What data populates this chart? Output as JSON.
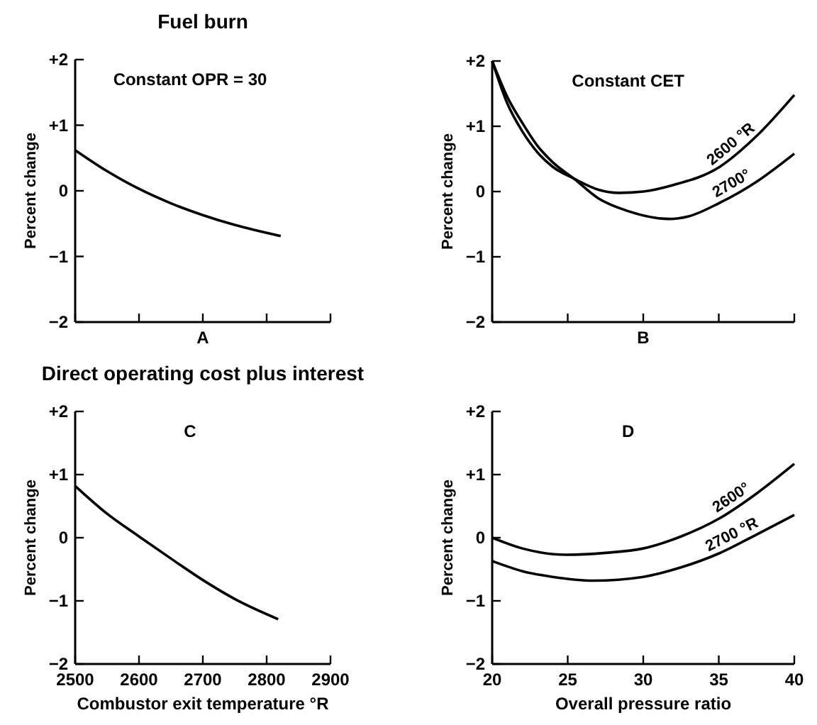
{
  "chart_data": [
    {
      "type": "line",
      "title": "Fuel burn",
      "xlabel": "A",
      "ylabel": "Percent change",
      "annotations": [
        "Constant OPR = 30"
      ],
      "tick_labels": "y",
      "grid": false,
      "xlim": [
        2500,
        2900
      ],
      "xticks": [
        2500,
        2600,
        2700,
        2800,
        2900
      ],
      "ylim": [
        -2,
        2
      ],
      "yticks": [
        {
          "value": 2,
          "label": "+2"
        },
        {
          "value": 1,
          "label": "+1"
        },
        {
          "value": 0,
          "label": "0"
        },
        {
          "value": -1,
          "label": "−1"
        },
        {
          "value": -2,
          "label": "−2"
        }
      ],
      "series": [
        {
          "color": "#000000",
          "x": [
            2500,
            2550,
            2600,
            2650,
            2700,
            2750,
            2822
          ],
          "values": [
            0.62,
            0.3,
            0.03,
            -0.19,
            -0.37,
            -0.52,
            -0.69
          ]
        }
      ]
    },
    {
      "type": "line",
      "xlabel": "B",
      "ylabel": "Percent change",
      "annotations": [
        "Constant CET"
      ],
      "tick_labels": "y",
      "grid": false,
      "xlim": [
        20,
        40
      ],
      "xticks": [
        20,
        25,
        30,
        35,
        40
      ],
      "ylim": [
        -2,
        2
      ],
      "yticks": [
        {
          "value": 2,
          "label": "+2"
        },
        {
          "value": 1,
          "label": "+1"
        },
        {
          "value": 0,
          "label": "0"
        },
        {
          "value": -1,
          "label": "−1"
        },
        {
          "value": -2,
          "label": "−2"
        }
      ],
      "series": [
        {
          "name": "2600 °R",
          "color": "#000000",
          "x": [
            20,
            21,
            22,
            23,
            24,
            25.4,
            27,
            28.4,
            30,
            32,
            35,
            37.5,
            40
          ],
          "values": [
            2.0,
            1.35,
            0.92,
            0.6,
            0.38,
            0.2,
            0.03,
            -0.02,
            0.0,
            0.1,
            0.37,
            0.85,
            1.48
          ]
        },
        {
          "name": "2700°",
          "color": "#000000",
          "x": [
            20,
            21,
            22,
            23,
            24,
            25.4,
            27,
            29,
            31.7,
            33,
            35,
            37.5,
            40
          ],
          "values": [
            2.0,
            1.45,
            1.05,
            0.7,
            0.45,
            0.2,
            -0.1,
            -0.3,
            -0.42,
            -0.38,
            -0.18,
            0.15,
            0.58
          ]
        }
      ]
    },
    {
      "type": "line",
      "title": "Direct operating cost plus interest",
      "xlabel": "Combustor exit temperature °R",
      "ylabel": "Percent change",
      "annotations": [
        "C"
      ],
      "grid": false,
      "xlim": [
        2500,
        2900
      ],
      "xticks": [
        2500,
        2600,
        2700,
        2800,
        2900
      ],
      "ylim": [
        -2,
        2
      ],
      "yticks": [
        {
          "value": 2,
          "label": "+2"
        },
        {
          "value": 1,
          "label": "+1"
        },
        {
          "value": 0,
          "label": "0"
        },
        {
          "value": -1,
          "label": "−1"
        },
        {
          "value": -2,
          "label": "−2"
        }
      ],
      "series": [
        {
          "color": "#000000",
          "x": [
            2500,
            2550,
            2600,
            2650,
            2700,
            2750,
            2818
          ],
          "values": [
            0.82,
            0.38,
            0.02,
            -0.33,
            -0.67,
            -0.97,
            -1.29
          ]
        }
      ]
    },
    {
      "type": "line",
      "xlabel": "Overall pressure ratio",
      "ylabel": "Percent change",
      "annotations": [
        "D"
      ],
      "grid": false,
      "xlim": [
        20,
        40
      ],
      "xticks": [
        20,
        25,
        30,
        35,
        40
      ],
      "ylim": [
        -2,
        2
      ],
      "yticks": [
        {
          "value": 2,
          "label": "+2"
        },
        {
          "value": 1,
          "label": "+1"
        },
        {
          "value": 0,
          "label": "0"
        },
        {
          "value": -1,
          "label": "−1"
        },
        {
          "value": -2,
          "label": "−2"
        }
      ],
      "series": [
        {
          "name": "2600°",
          "color": "#000000",
          "x": [
            20,
            22,
            24.9,
            27.5,
            30,
            32.5,
            35,
            37.5,
            40
          ],
          "values": [
            0,
            -0.17,
            -0.27,
            -0.24,
            -0.17,
            0.02,
            0.3,
            0.7,
            1.17
          ]
        },
        {
          "name": "2700 °R",
          "color": "#000000",
          "x": [
            20,
            22,
            24,
            26.7,
            30,
            32.5,
            35,
            37.5,
            40
          ],
          "values": [
            -0.37,
            -0.53,
            -0.62,
            -0.68,
            -0.62,
            -0.47,
            -0.25,
            0.05,
            0.36
          ]
        }
      ]
    }
  ]
}
